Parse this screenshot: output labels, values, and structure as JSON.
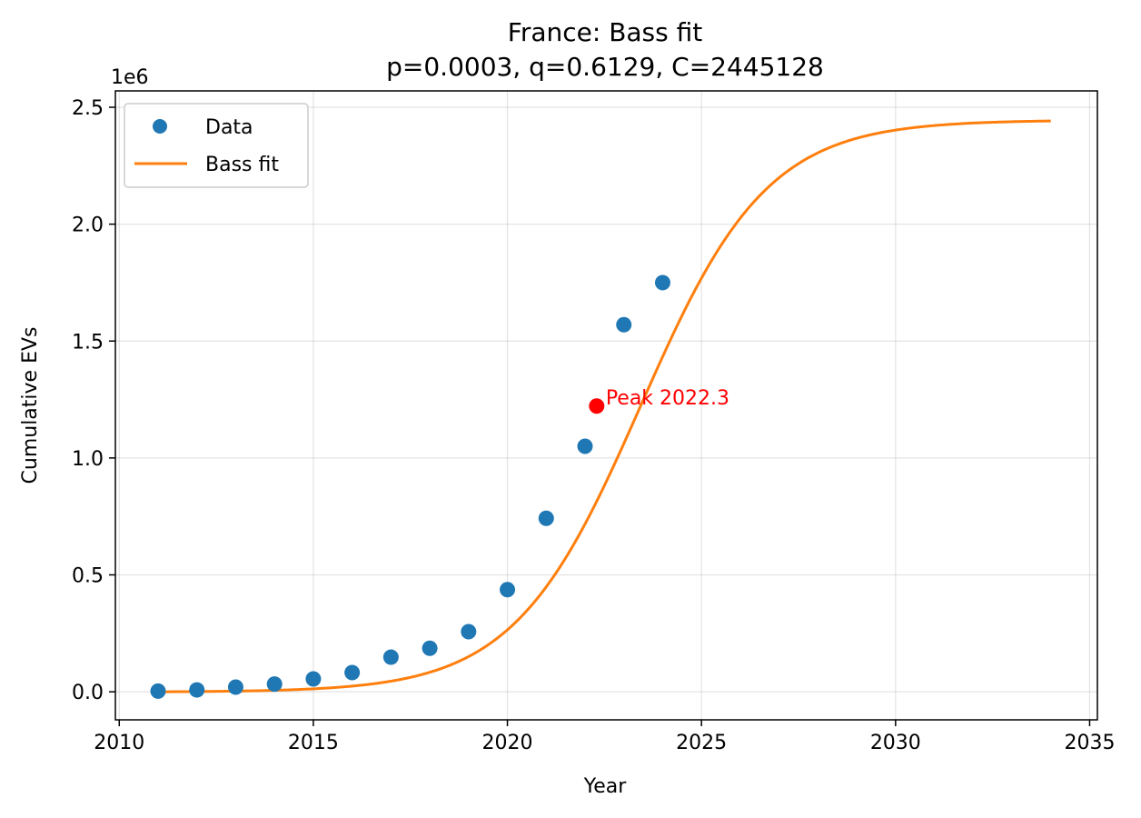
{
  "chart_data": {
    "type": "scatter",
    "title": "France: Bass fit",
    "subtitle": "p=0.0003, q=0.6129, C=2445128",
    "xlabel": "Year",
    "ylabel": "Cumulative EVs",
    "y_offset_label": "1e6",
    "xlim": [
      2009.9,
      2035.2
    ],
    "ylim": [
      -0.12,
      2.57
    ],
    "xticks": [
      2010,
      2015,
      2020,
      2025,
      2030,
      2035
    ],
    "yticks": [
      0.0,
      0.5,
      1.0,
      1.5,
      2.0,
      2.5
    ],
    "xtick_labels": [
      "2010",
      "2015",
      "2020",
      "2025",
      "2030",
      "2035"
    ],
    "ytick_labels": [
      "0.0",
      "0.5",
      "1.0",
      "1.5",
      "2.0",
      "2.5"
    ],
    "grid": true,
    "legend_position": "upper-left",
    "series": [
      {
        "name": "Data",
        "kind": "scatter",
        "color": "#1f77b4",
        "x": [
          2011,
          2012,
          2013,
          2014,
          2015,
          2016,
          2017,
          2018,
          2019,
          2020,
          2021,
          2022,
          2023,
          2024
        ],
        "y": [
          0.003,
          0.008,
          0.02,
          0.033,
          0.055,
          0.082,
          0.148,
          0.186,
          0.257,
          0.437,
          0.742,
          1.05,
          1.57,
          1.75
        ]
      },
      {
        "name": "Bass fit",
        "kind": "line",
        "color": "#ff7f0e",
        "params": {
          "p": 0.0003,
          "q": 0.6129,
          "C": 2.445128,
          "t0": 2011
        },
        "x_range": [
          2011,
          2034
        ]
      }
    ],
    "annotations": [
      {
        "text": "Peak 2022.3",
        "x": 2022.3,
        "y": 1.222,
        "color": "#ff0000"
      }
    ]
  }
}
